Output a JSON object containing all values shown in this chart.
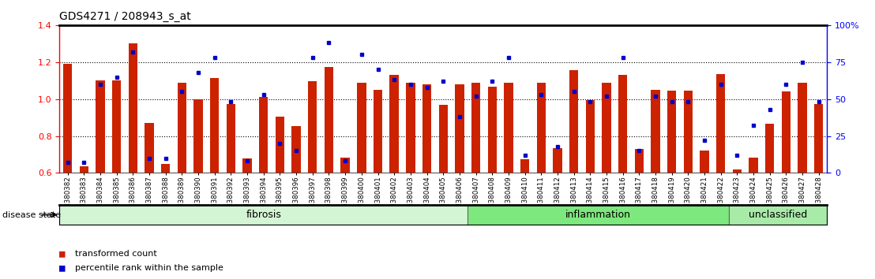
{
  "title": "GDS4271 / 208943_s_at",
  "samples": [
    "GSM380382",
    "GSM380383",
    "GSM380384",
    "GSM380385",
    "GSM380386",
    "GSM380387",
    "GSM380388",
    "GSM380389",
    "GSM380390",
    "GSM380391",
    "GSM380392",
    "GSM380393",
    "GSM380394",
    "GSM380395",
    "GSM380396",
    "GSM380397",
    "GSM380398",
    "GSM380399",
    "GSM380400",
    "GSM380401",
    "GSM380402",
    "GSM380403",
    "GSM380404",
    "GSM380405",
    "GSM380406",
    "GSM380407",
    "GSM380408",
    "GSM380409",
    "GSM380410",
    "GSM380411",
    "GSM380412",
    "GSM380413",
    "GSM380414",
    "GSM380415",
    "GSM380416",
    "GSM380417",
    "GSM380418",
    "GSM380419",
    "GSM380420",
    "GSM380421",
    "GSM380422",
    "GSM380423",
    "GSM380424",
    "GSM380425",
    "GSM380426",
    "GSM380427",
    "GSM380428"
  ],
  "bar_values": [
    1.19,
    0.635,
    1.1,
    1.1,
    1.3,
    0.87,
    0.65,
    1.09,
    1.0,
    1.115,
    0.975,
    0.68,
    1.01,
    0.905,
    0.855,
    1.095,
    1.175,
    0.685,
    1.09,
    1.05,
    1.13,
    1.09,
    1.08,
    0.97,
    1.08,
    1.09,
    1.065,
    1.09,
    0.675,
    1.09,
    0.735,
    1.155,
    0.995,
    1.09,
    1.13,
    0.73,
    1.05,
    1.045,
    1.045,
    0.72,
    1.135,
    0.62,
    0.685,
    0.865,
    1.04,
    1.09,
    0.975
  ],
  "percentile_values": [
    7,
    7,
    60,
    65,
    82,
    10,
    10,
    55,
    68,
    78,
    48,
    8,
    53,
    20,
    15,
    78,
    88,
    8,
    80,
    70,
    63,
    60,
    58,
    62,
    38,
    52,
    62,
    78,
    12,
    53,
    18,
    55,
    48,
    52,
    78,
    15,
    52,
    48,
    48,
    22,
    60,
    12,
    32,
    43,
    60,
    75,
    48
  ],
  "disease_groups": [
    {
      "label": "fibrosis",
      "start": 0,
      "end": 25,
      "color": "#d4f5d4"
    },
    {
      "label": "inflammation",
      "start": 25,
      "end": 41,
      "color": "#7de87d"
    },
    {
      "label": "unclassified",
      "start": 41,
      "end": 47,
      "color": "#a8eba8"
    }
  ],
  "ylim": [
    0.6,
    1.4
  ],
  "yticks_left": [
    0.6,
    0.8,
    1.0,
    1.2,
    1.4
  ],
  "yticks_right_vals": [
    0,
    25,
    50,
    75,
    100
  ],
  "yticks_right_labels": [
    "0",
    "25",
    "50",
    "75",
    "100%"
  ],
  "bar_color": "#cc2200",
  "dot_color": "#0000cc",
  "background_color": "#ffffff",
  "bar_width": 0.55,
  "legend_items": [
    {
      "color": "#cc2200",
      "label": "transformed count"
    },
    {
      "color": "#0000cc",
      "label": "percentile rank within the sample"
    }
  ]
}
